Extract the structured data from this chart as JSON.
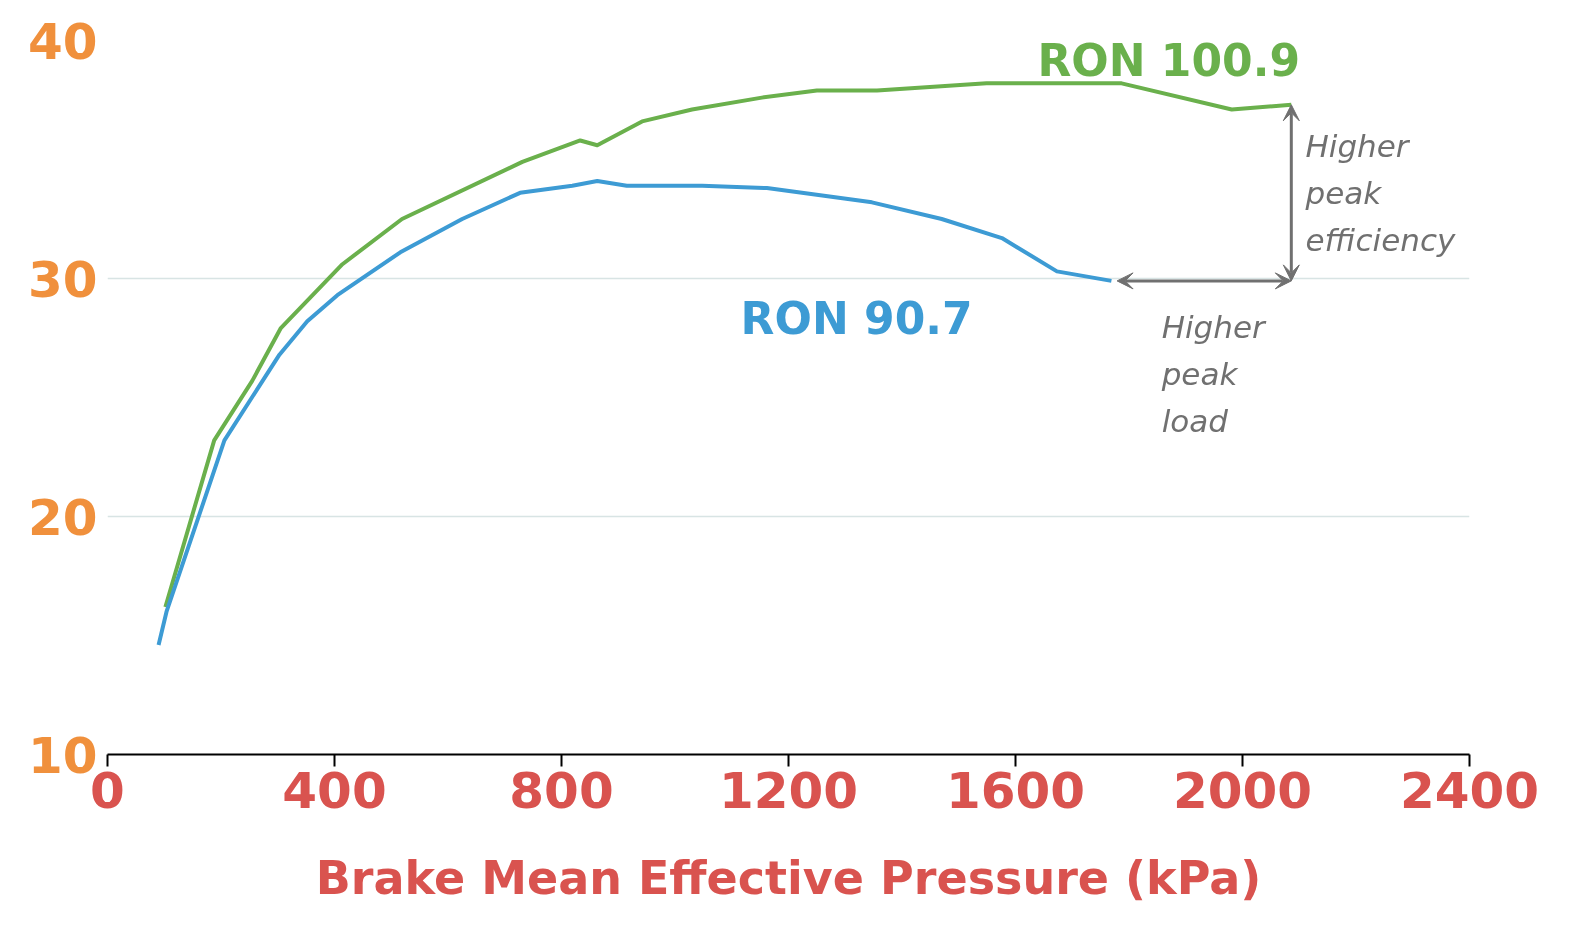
{
  "chart_data": {
    "type": "line",
    "xlabel": "Brake Mean Effective Pressure (kPa)",
    "xlim": [
      0,
      2400
    ],
    "xticks": [
      0,
      400,
      800,
      1200,
      1600,
      2000,
      2400
    ],
    "ylim": [
      10,
      40
    ],
    "yticks": [
      10,
      20,
      30,
      40
    ],
    "grid": "y",
    "marker": "none",
    "line_style": "solid",
    "series": [
      {
        "name": "RON 100.9",
        "color": "#6ab04c",
        "x": [
          102,
          188,
          255,
          305,
          414,
          519,
          731,
          833,
          863,
          942,
          1030,
          1153,
          1250,
          1356,
          1549,
          1787,
          1981,
          2086
        ],
        "values": [
          16.2,
          23.2,
          25.7,
          27.9,
          30.6,
          32.5,
          34.9,
          35.8,
          35.6,
          36.6,
          37.1,
          37.6,
          37.9,
          37.9,
          38.2,
          38.2,
          37.1,
          37.3
        ]
      },
      {
        "name": "RON 90.7",
        "color": "#3d9bd4",
        "x": [
          90,
          104,
          206,
          303,
          352,
          405,
          516,
          625,
          727,
          819,
          863,
          915,
          1048,
          1162,
          1347,
          1470,
          1576,
          1673,
          1769
        ],
        "values": [
          14.6,
          16.0,
          23.2,
          26.8,
          28.2,
          29.3,
          31.1,
          32.5,
          33.6,
          33.9,
          34.1,
          33.9,
          33.9,
          33.8,
          33.2,
          32.5,
          31.7,
          30.3,
          29.9
        ]
      }
    ],
    "annotations": [
      {
        "text": "Higher peak efficiency",
        "x": 2086,
        "y": 37.3
      },
      "Higher peak load"
    ]
  }
}
